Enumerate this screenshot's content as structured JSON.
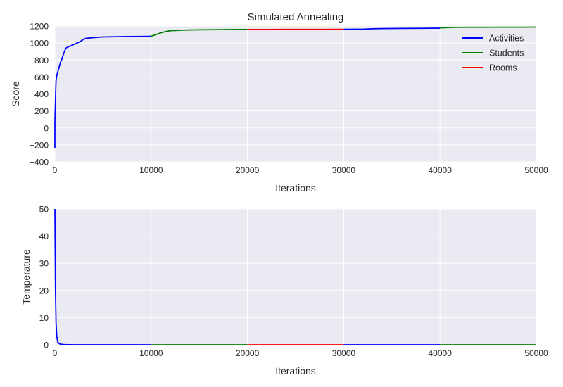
{
  "chart_data": [
    {
      "type": "line",
      "title": "Simulated Annealing",
      "xlabel": "Iterations",
      "ylabel": "Score",
      "xlim": [
        0,
        50000
      ],
      "ylim": [
        -400,
        1200
      ],
      "xticks": [
        0,
        10000,
        20000,
        30000,
        40000,
        50000
      ],
      "xtick_labels": [
        "0",
        "10000",
        "20000",
        "30000",
        "40000",
        "50000"
      ],
      "yticks": [
        -400,
        -200,
        0,
        200,
        400,
        600,
        800,
        1000,
        1200
      ],
      "ytick_labels": [
        "−400",
        "−200",
        "0",
        "200",
        "400",
        "600",
        "800",
        "1000",
        "1200"
      ],
      "grid": true,
      "legend_position": "top-right",
      "legend": [
        {
          "name": "Activities",
          "color": "#0000ff"
        },
        {
          "name": "Students",
          "color": "#008000"
        },
        {
          "name": "Rooms",
          "color": "#ff0000"
        }
      ],
      "segments": [
        {
          "series": "Activities",
          "color": "#0000ff",
          "x": [
            0,
            0,
            30,
            60,
            80,
            120,
            160,
            200,
            250,
            300,
            400,
            500,
            600,
            700,
            800,
            900,
            1000,
            1100,
            1200,
            1400,
            1600,
            1800,
            2000,
            2200,
            2400,
            2600,
            2800,
            3000,
            3200,
            3500,
            4000,
            4500,
            5000,
            6000,
            7000,
            8000,
            9000,
            10000
          ],
          "y": [
            -240,
            60,
            200,
            330,
            420,
            560,
            590,
            620,
            640,
            660,
            700,
            740,
            780,
            800,
            840,
            870,
            900,
            930,
            945,
            955,
            965,
            975,
            985,
            995,
            1005,
            1015,
            1030,
            1045,
            1055,
            1058,
            1063,
            1068,
            1072,
            1074,
            1076,
            1077,
            1078,
            1079
          ]
        },
        {
          "series": "Students",
          "color": "#008000",
          "x": [
            10000,
            10500,
            11000,
            11500,
            12000,
            13000,
            14000,
            15000,
            16000,
            17000,
            18000,
            19000,
            20000
          ],
          "y": [
            1080,
            1100,
            1120,
            1135,
            1145,
            1150,
            1153,
            1155,
            1157,
            1158,
            1159,
            1160,
            1160
          ]
        },
        {
          "series": "Rooms",
          "color": "#ff0000",
          "x": [
            20000,
            22000,
            24000,
            26000,
            28000,
            30000
          ],
          "y": [
            1160,
            1160,
            1161,
            1161,
            1161,
            1162
          ]
        },
        {
          "series": "Activities",
          "color": "#0000ff",
          "x": [
            30000,
            32000,
            33000,
            34000,
            36000,
            38000,
            40000
          ],
          "y": [
            1162,
            1163,
            1168,
            1170,
            1172,
            1173,
            1175
          ]
        },
        {
          "series": "Students",
          "color": "#008000",
          "x": [
            40000,
            41000,
            42000,
            44000,
            46000,
            48000,
            50000
          ],
          "y": [
            1178,
            1182,
            1185,
            1186,
            1187,
            1187,
            1188
          ]
        }
      ]
    },
    {
      "type": "line",
      "title": "",
      "xlabel": "Iterations",
      "ylabel": "Temperature",
      "xlim": [
        0,
        50000
      ],
      "ylim": [
        0,
        50
      ],
      "xticks": [
        0,
        10000,
        20000,
        30000,
        40000,
        50000
      ],
      "xtick_labels": [
        "0",
        "10000",
        "20000",
        "30000",
        "40000",
        "50000"
      ],
      "yticks": [
        0,
        10,
        20,
        30,
        40,
        50
      ],
      "ytick_labels": [
        "0",
        "10",
        "20",
        "30",
        "40",
        "50"
      ],
      "grid": true,
      "segments": [
        {
          "series": "Activities",
          "color": "#0000ff",
          "x": [
            0,
            60,
            120,
            200,
            300,
            500,
            1000,
            2000,
            5000,
            10000
          ],
          "y": [
            50,
            20,
            8,
            3,
            1,
            0.3,
            0.05,
            0.01,
            0,
            0
          ]
        },
        {
          "series": "Students",
          "color": "#008000",
          "x": [
            10000,
            20000
          ],
          "y": [
            0,
            0
          ]
        },
        {
          "series": "Rooms",
          "color": "#ff0000",
          "x": [
            20000,
            30000
          ],
          "y": [
            0,
            0
          ]
        },
        {
          "series": "Activities",
          "color": "#0000ff",
          "x": [
            30000,
            40000
          ],
          "y": [
            0,
            0
          ]
        },
        {
          "series": "Students",
          "color": "#008000",
          "x": [
            40000,
            50000
          ],
          "y": [
            0,
            0
          ]
        }
      ]
    }
  ]
}
